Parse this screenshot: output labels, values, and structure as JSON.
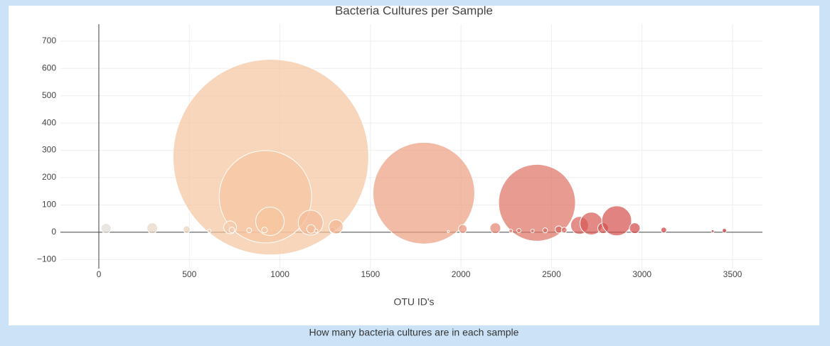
{
  "chart_data": {
    "type": "bubble",
    "title": "Bacteria Cultures per Sample",
    "x_label": "OTU ID's",
    "caption": "How many bacteria cultures are in each sample",
    "xlim": [
      -212,
      3665
    ],
    "ylim": [
      -133,
      762
    ],
    "xticks": [
      0,
      500,
      1000,
      1500,
      2000,
      2500,
      3000,
      3500
    ],
    "yticks": [
      {
        "value": -100,
        "label": "−100"
      },
      0,
      100,
      200,
      300,
      400,
      500,
      600,
      700
    ],
    "grid": true,
    "opacity": 0.7,
    "colorscale": [
      [
        0,
        "#e0dcd6"
      ],
      [
        0.25,
        "#f6c7a2"
      ],
      [
        0.5,
        "#eea282"
      ],
      [
        0.75,
        "#d9625a"
      ],
      [
        1,
        "#c8222a"
      ]
    ],
    "series": [
      {
        "x": [
          950,
          1795,
          2420,
          920,
          40,
          295,
          485,
          610,
          725,
          735,
          830,
          945,
          915,
          1170,
          1172,
          1200,
          1290,
          1310,
          1930,
          2010,
          2190,
          2275,
          2320,
          2395,
          2465,
          2540,
          2570,
          2655,
          2720,
          2785,
          2860,
          2960,
          3120,
          3390,
          3455
        ],
        "values": [
          275,
          143,
          108,
          130,
          14,
          15,
          10,
          5,
          18,
          8,
          7,
          40,
          8,
          35,
          12,
          5,
          8,
          20,
          3,
          12,
          15,
          5,
          6,
          5,
          7,
          10,
          8,
          25,
          32,
          15,
          42,
          15,
          8,
          4,
          6
        ],
        "sizes": [
          275,
          143,
          108,
          130,
          14,
          15,
          10,
          5,
          18,
          8,
          7,
          40,
          8,
          35,
          12,
          5,
          8,
          20,
          3,
          12,
          15,
          5,
          6,
          5,
          7,
          10,
          8,
          25,
          32,
          15,
          42,
          15,
          8,
          4,
          6
        ]
      }
    ]
  }
}
